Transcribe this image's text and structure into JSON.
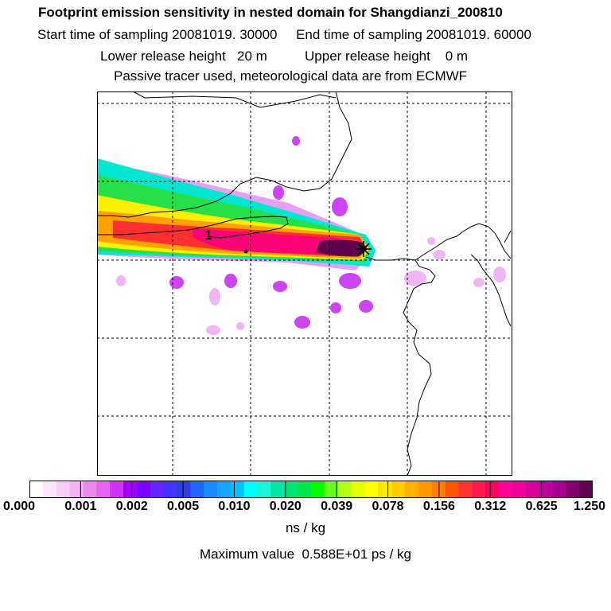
{
  "header": {
    "title": "Footprint emission sensitivity in nested domain for Shangdianzi_200810",
    "line2": "Start time of sampling 20081019. 30000     End time of sampling 20081019. 60000",
    "line3": "Lower release height   20 m          Upper release height    0 m",
    "line4": "Passive tracer used, meteorological data are from ECMWF"
  },
  "map": {
    "release_label": "1"
  },
  "colorbar": {
    "colors": [
      "#ffffff",
      "#fde6fd",
      "#f9cef9",
      "#f5b3f5",
      "#ee8aee",
      "#e566ef",
      "#cc33f7",
      "#a100fb",
      "#7f00ff",
      "#6a22ff",
      "#4433ff",
      "#2c3fe6",
      "#1f66ff",
      "#1a8cff",
      "#1aa3ff",
      "#00c2ff",
      "#00ffff",
      "#1af5d9",
      "#00e6a8",
      "#00e673",
      "#00e64d",
      "#00ff00",
      "#66ff1a",
      "#b3ff1a",
      "#e6ff00",
      "#ffff00",
      "#ffe600",
      "#ffcc00",
      "#ffb300",
      "#ff9900",
      "#ff7f00",
      "#ff5500",
      "#ff3333",
      "#ff1a4d",
      "#ff0066",
      "#ff0099",
      "#f0009c",
      "#d9009e",
      "#c0009c",
      "#a3008f",
      "#800070",
      "#5e004e"
    ],
    "tick_labels": [
      "0.000",
      "0.001",
      "0.002",
      "0.005",
      "0.010",
      "0.020",
      "0.039",
      "0.078",
      "0.156",
      "0.312",
      "0.625",
      "1.250"
    ],
    "units": "ns / kg"
  },
  "footer": {
    "max_value": "Maximum value  0.588E+01 ps / kg"
  }
}
